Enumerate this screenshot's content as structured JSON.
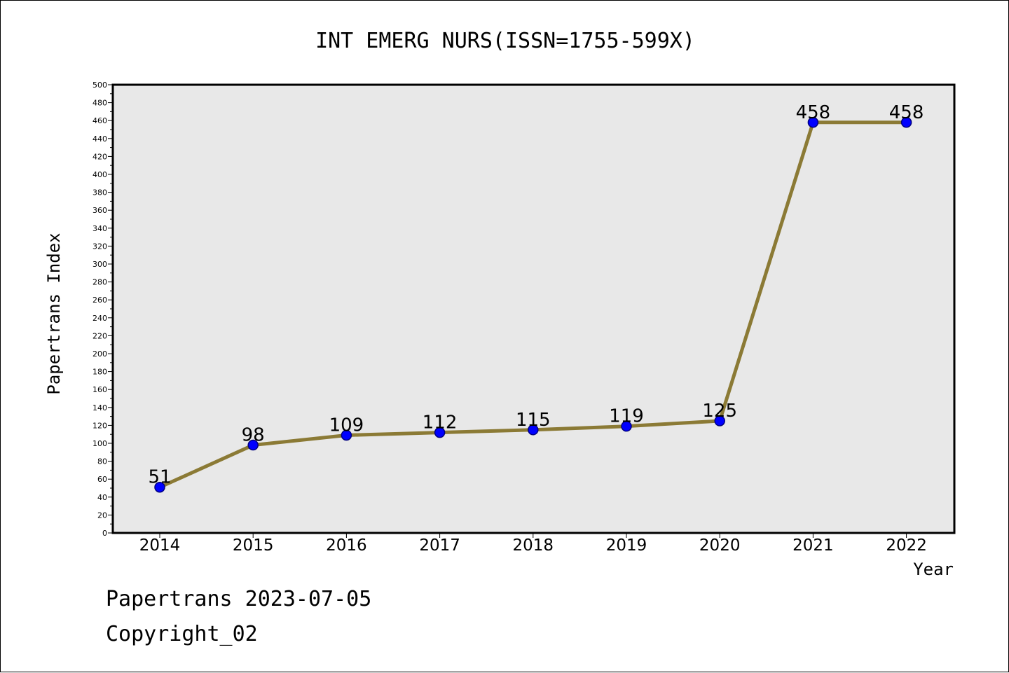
{
  "footer": {
    "line1": "Papertrans 2023-07-05",
    "line2": "Copyright_02"
  },
  "colors": {
    "plot_background": "#e8e8e8",
    "line": "#8b7a35",
    "marker": "#0000ff",
    "marker_edge": "#000080"
  },
  "chart_data": {
    "type": "line",
    "title": "INT EMERG NURS(ISSN=1755-599X)",
    "xlabel": "Year",
    "ylabel": "Papertrans Index",
    "x": [
      "2014",
      "2015",
      "2016",
      "2017",
      "2018",
      "2019",
      "2020",
      "2021",
      "2022"
    ],
    "series": [
      {
        "values": [
          51,
          98,
          109,
          112,
          115,
          119,
          125,
          458,
          458
        ]
      }
    ],
    "ylim": [
      0,
      500
    ],
    "yticks": [
      0,
      20,
      40,
      60,
      80,
      100,
      120,
      140,
      160,
      180,
      200,
      220,
      240,
      260,
      280,
      300,
      320,
      340,
      360,
      380,
      400,
      420,
      440,
      460,
      480,
      500
    ],
    "grid": false,
    "legend": "none"
  }
}
